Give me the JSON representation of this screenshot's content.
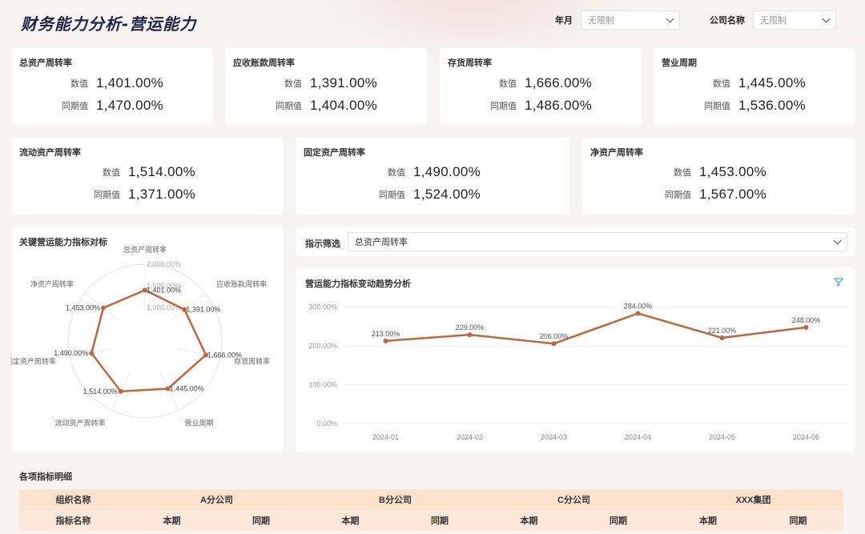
{
  "header": {
    "title": "财务能力分析-营运能力",
    "filters": [
      {
        "label": "年月",
        "value": "无限制"
      },
      {
        "label": "公司名称",
        "value": "无限制"
      }
    ]
  },
  "kpi_labels": {
    "current": "数值",
    "previous": "同期值"
  },
  "kpis": [
    {
      "title": "总资产周转率",
      "current": "1,401.00%",
      "previous": "1,470.00%"
    },
    {
      "title": "应收账款周转率",
      "current": "1,391.00%",
      "previous": "1,404.00%"
    },
    {
      "title": "存货周转率",
      "current": "1,666.00%",
      "previous": "1,486.00%"
    },
    {
      "title": "营业周期",
      "current": "1,445.00%",
      "previous": "1,536.00%"
    },
    {
      "title": "流动资产周转率",
      "current": "1,514.00%",
      "previous": "1,371.00%"
    },
    {
      "title": "固定资产周转率",
      "current": "1,490.00%",
      "previous": "1,524.00%"
    },
    {
      "title": "净资产周转率",
      "current": "1,453.00%",
      "previous": "1,567.00%"
    }
  ],
  "radar": {
    "title": "关键营运能力指标对标",
    "ring_labels": [
      "2,000.00%",
      "1,500.00%",
      "1,000.00%"
    ],
    "axes": [
      "总资产周转率",
      "应收账款周转率",
      "存货周转率",
      "营业周期",
      "流动资产周转率",
      "固定资产周转率",
      "净资产周转率"
    ],
    "values": [
      1401,
      1391,
      1666,
      1445,
      1514,
      1490,
      1453
    ],
    "value_labels": [
      "1,401.00%",
      "1,391.00%",
      "1,666.00%",
      "1,445.00%",
      "1,514.00%",
      "1,490.00%",
      "1,453.00%"
    ],
    "max": 2000,
    "color": "#c0663c"
  },
  "indicator_filter": {
    "label": "指示筛选",
    "value": "总资产周转率"
  },
  "chart_data": {
    "type": "line",
    "title": "营运能力指标变动趋势分析",
    "categories": [
      "2024-01",
      "2024-02",
      "2024-03",
      "2024-04",
      "2024-05",
      "2024-06"
    ],
    "values": [
      213,
      229,
      206,
      284,
      221,
      248
    ],
    "value_labels": [
      "213.00%",
      "229.00%",
      "206.00%",
      "284.00%",
      "221.00%",
      "248.00%"
    ],
    "y_ticks": [
      "0.00%",
      "100.00%",
      "200.00%",
      "300.00%"
    ],
    "y_tick_values": [
      0,
      100,
      200,
      300
    ],
    "ylim": [
      0,
      320
    ],
    "color": "#c0663c"
  },
  "detail": {
    "title": "各项指标明细",
    "org_header": "组织名称",
    "metric_header": "指标名称",
    "companies": [
      "A分公司",
      "B分公司",
      "C分公司",
      "XXX集团"
    ],
    "period_labels": [
      "本期",
      "同期"
    ]
  }
}
